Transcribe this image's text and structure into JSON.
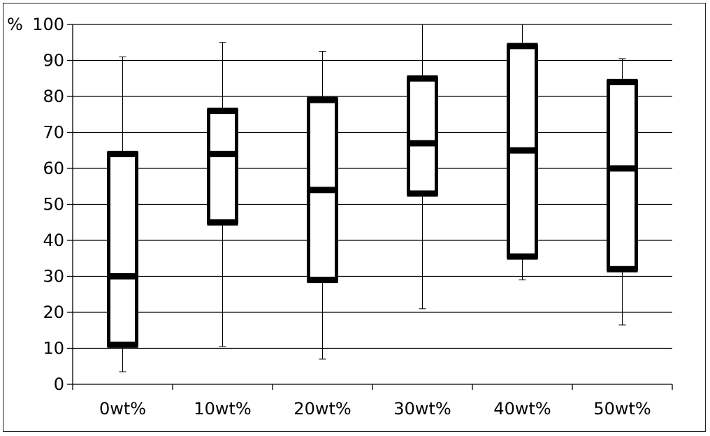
{
  "chart_data": {
    "type": "box",
    "ylabel": "%",
    "ylim": [
      0,
      100
    ],
    "yticks": [
      0,
      10,
      20,
      30,
      40,
      50,
      60,
      70,
      80,
      90,
      100
    ],
    "ytick_labels": [
      "0",
      "10",
      "20",
      "30",
      "40",
      "50",
      "60",
      "70",
      "80",
      "90",
      "100"
    ],
    "grid": true,
    "categories": [
      "0wt%",
      "10wt%",
      "20wt%",
      "30wt%",
      "40wt%",
      "50wt%"
    ],
    "boxes": [
      {
        "category": "0wt%",
        "min": 3.5,
        "q1": 11,
        "median": 30,
        "q3": 64,
        "max": 91
      },
      {
        "category": "10wt%",
        "min": 10.5,
        "q1": 45,
        "median": 64,
        "q3": 76,
        "max": 95
      },
      {
        "category": "20wt%",
        "min": 7,
        "q1": 29,
        "median": 54,
        "q3": 79,
        "max": 92.5
      },
      {
        "category": "30wt%",
        "min": 21,
        "q1": 53,
        "median": 67,
        "q3": 85,
        "max": 100
      },
      {
        "category": "40wt%",
        "min": 29,
        "q1": 35.5,
        "median": 65,
        "q3": 94,
        "max": 100
      },
      {
        "category": "50wt%",
        "min": 16.5,
        "q1": 32,
        "median": 60,
        "q3": 84,
        "max": 90.5
      }
    ],
    "colors": {
      "box": "#000000",
      "whisker": "#000000",
      "grid": "#000000",
      "axis": "#000000"
    }
  }
}
